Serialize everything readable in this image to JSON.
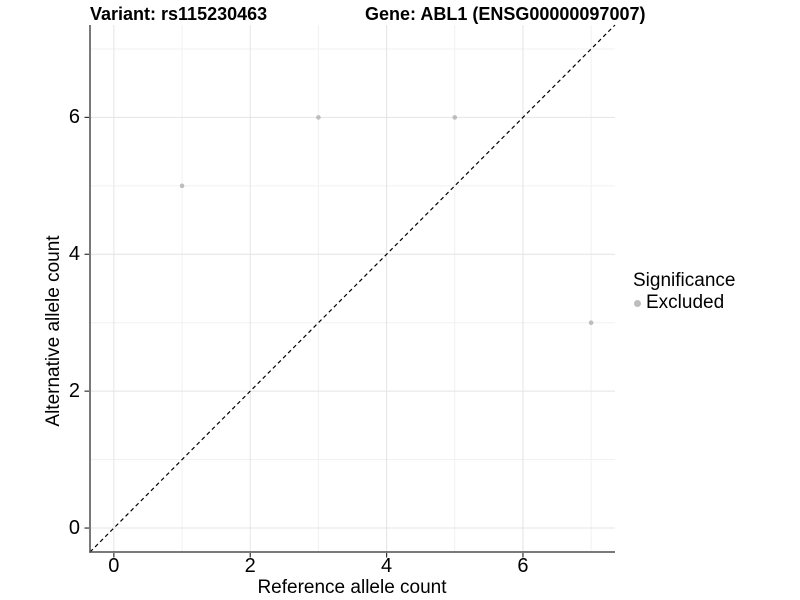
{
  "chart_data": {
    "type": "scatter",
    "title_left": "Variant: rs115230463",
    "title_right": "Gene: ABL1 (ENSG00000097007)",
    "xlabel": "Reference allele count",
    "ylabel": "Alternative allele count",
    "xlim": [
      -0.35,
      7.35
    ],
    "ylim": [
      -0.35,
      7.35
    ],
    "x_ticks": [
      0,
      2,
      4,
      6
    ],
    "y_ticks": [
      0,
      2,
      4,
      6
    ],
    "x_tick_labels": [
      "0",
      "2",
      "4",
      "6"
    ],
    "y_tick_labels": [
      "0",
      "2",
      "4",
      "6"
    ],
    "grid": {
      "major_x": [
        0,
        2,
        4,
        6
      ],
      "minor_x": [
        1,
        3,
        5,
        7
      ],
      "major_y": [
        0,
        2,
        4,
        6
      ],
      "minor_y": [
        1,
        3,
        5,
        7
      ]
    },
    "series": [
      {
        "name": "Excluded",
        "color": "#BDBDBD",
        "points": [
          {
            "x": 1,
            "y": 5
          },
          {
            "x": 3,
            "y": 6
          },
          {
            "x": 5,
            "y": 6
          },
          {
            "x": 7,
            "y": 3
          }
        ]
      }
    ],
    "reference_line": {
      "type": "identity",
      "equation": "y = x",
      "style": "dashed",
      "color": "#000000"
    },
    "legend": {
      "title": "Significance",
      "position": "right",
      "entries": [
        {
          "label": "Excluded",
          "color": "#BDBDBD"
        }
      ]
    }
  },
  "colors": {
    "background": "#FFFFFF",
    "grid_major": "#E4E4E4",
    "grid_minor": "#F1F1F1",
    "axis_line": "#4D4D4D",
    "tick_mark": "#333333",
    "point": "#BDBDBD",
    "dashed_line": "#000000",
    "text": "#000000"
  }
}
